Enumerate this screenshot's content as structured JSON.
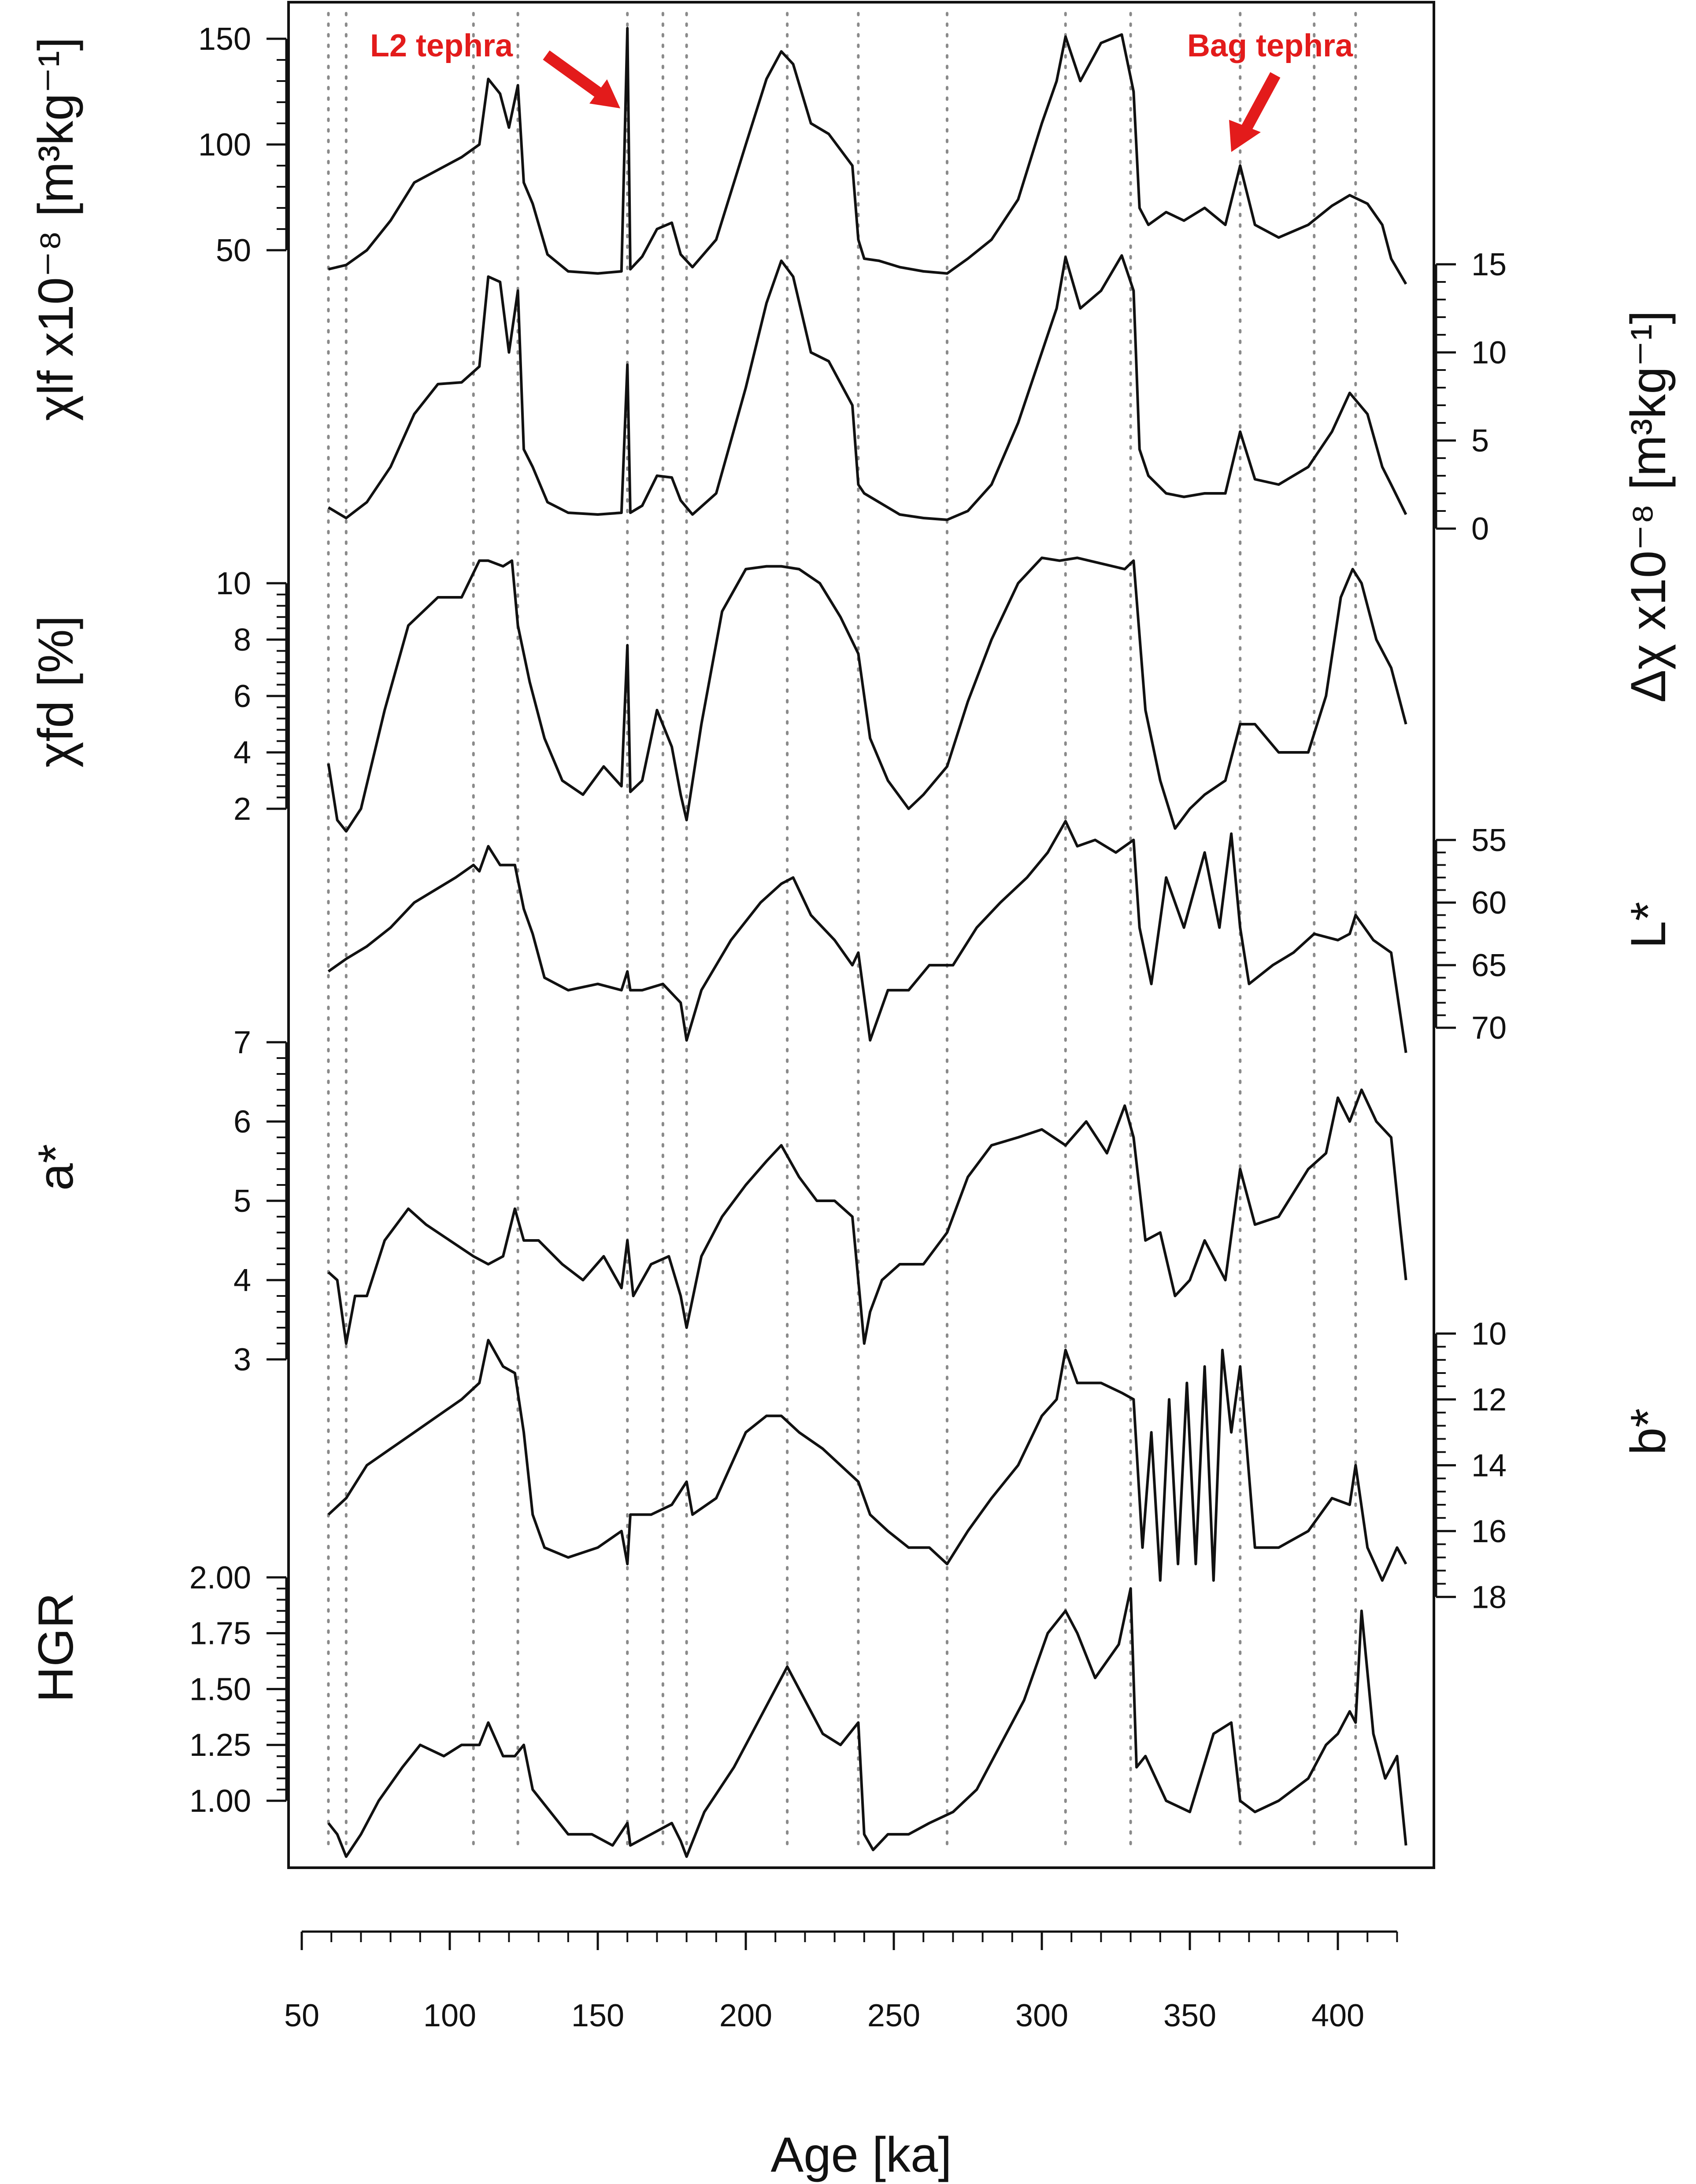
{
  "chart_data": {
    "type": "line",
    "xlabel": "Age [ka]",
    "xlim": [
      50,
      430
    ],
    "xticks": [
      50,
      100,
      150,
      200,
      250,
      300,
      350,
      400
    ],
    "xtick_labels": [
      "50",
      "100",
      "150",
      "200",
      "250",
      "300",
      "350",
      "400"
    ],
    "grid": "dotted vertical reference lines",
    "reference_lines_x": [
      59,
      65,
      108,
      123,
      160,
      172,
      180,
      214,
      238,
      268,
      308,
      330,
      367,
      392,
      406
    ],
    "annotations": [
      {
        "text": "L2 tephra",
        "x": 160
      },
      {
        "text": "Bag tephra",
        "x": 367
      }
    ],
    "panels": [
      {
        "name": "chi_lf",
        "ylabel": "χlf x10⁻⁸ [m³kg⁻¹]",
        "axis_side": "left",
        "ylim": [
          35,
          160
        ],
        "yticks": [
          50,
          100,
          150
        ],
        "ytick_labels": [
          "50",
          "100",
          "150"
        ],
        "x": [
          59,
          65,
          72,
          80,
          88,
          96,
          104,
          110,
          113,
          117,
          120,
          123,
          125,
          128,
          133,
          140,
          150,
          158,
          160,
          161,
          165,
          170,
          175,
          178,
          182,
          190,
          200,
          207,
          212,
          216,
          222,
          228,
          236,
          238,
          240,
          245,
          252,
          260,
          268,
          275,
          283,
          292,
          300,
          305,
          308,
          313,
          320,
          327,
          331,
          333,
          336,
          342,
          348,
          355,
          362,
          367,
          372,
          380,
          390,
          398,
          404,
          410,
          415,
          418,
          423
        ],
        "values": [
          41,
          43,
          50,
          64,
          82,
          88,
          94,
          100,
          131,
          124,
          108,
          128,
          82,
          72,
          48,
          40,
          39,
          40,
          155,
          41,
          47,
          60,
          63,
          48,
          42,
          55,
          100,
          131,
          144,
          138,
          110,
          105,
          90,
          55,
          46,
          45,
          42,
          40,
          39,
          46,
          55,
          74,
          110,
          130,
          151,
          130,
          148,
          152,
          125,
          70,
          62,
          68,
          64,
          70,
          62,
          90,
          62,
          56,
          62,
          71,
          76,
          72,
          62,
          46,
          34
        ]
      },
      {
        "name": "delta_chi",
        "ylabel": "Δχ x10⁻⁸ [m³kg⁻¹]",
        "axis_side": "right",
        "ylim": [
          0,
          16
        ],
        "yticks": [
          0,
          5,
          10,
          15
        ],
        "ytick_labels": [
          "0",
          "5",
          "10",
          "15"
        ],
        "x": [
          59,
          65,
          72,
          80,
          88,
          96,
          104,
          110,
          113,
          117,
          120,
          123,
          125,
          128,
          133,
          140,
          150,
          158,
          160,
          161,
          165,
          170,
          175,
          178,
          182,
          190,
          200,
          207,
          212,
          216,
          222,
          228,
          236,
          238,
          240,
          245,
          252,
          260,
          268,
          275,
          283,
          292,
          300,
          305,
          308,
          313,
          320,
          327,
          331,
          333,
          336,
          342,
          348,
          355,
          362,
          367,
          372,
          380,
          390,
          398,
          404,
          410,
          415,
          418,
          423
        ],
        "values": [
          1.2,
          0.6,
          1.5,
          3.5,
          6.5,
          8.2,
          8.3,
          9.2,
          14.3,
          14.0,
          10.0,
          13.5,
          4.5,
          3.5,
          1.5,
          0.9,
          0.8,
          0.9,
          9.3,
          0.9,
          1.3,
          3.0,
          2.9,
          1.6,
          0.8,
          2.0,
          8.0,
          12.8,
          15.2,
          14.3,
          10.0,
          9.5,
          7.0,
          2.5,
          2.0,
          1.5,
          0.8,
          0.6,
          0.5,
          1.0,
          2.5,
          6.0,
          10.0,
          12.5,
          15.4,
          12.5,
          13.5,
          15.5,
          13.5,
          4.5,
          3.0,
          2.0,
          1.8,
          2.0,
          2.0,
          5.5,
          2.8,
          2.5,
          3.5,
          5.5,
          7.7,
          6.5,
          3.5,
          2.5,
          0.8
        ]
      },
      {
        "name": "chi_fd",
        "ylabel": "χfd [%]",
        "axis_side": "left",
        "ylim": [
          1,
          11
        ],
        "yticks": [
          2,
          4,
          6,
          8,
          10
        ],
        "ytick_labels": [
          "2",
          "4",
          "6",
          "8",
          "10"
        ],
        "x": [
          59,
          62,
          65,
          70,
          78,
          86,
          96,
          104,
          110,
          113,
          118,
          121,
          123,
          127,
          132,
          138,
          145,
          152,
          158,
          160,
          161,
          165,
          170,
          175,
          178,
          180,
          185,
          192,
          200,
          207,
          212,
          218,
          225,
          232,
          238,
          242,
          248,
          255,
          260,
          268,
          275,
          283,
          292,
          300,
          306,
          312,
          320,
          328,
          331,
          335,
          340,
          345,
          350,
          355,
          362,
          367,
          372,
          380,
          390,
          396,
          401,
          405,
          408,
          413,
          418,
          423
        ],
        "values": [
          3.6,
          1.6,
          1.2,
          2.0,
          5.5,
          8.5,
          9.5,
          9.5,
          10.8,
          10.8,
          10.6,
          10.8,
          8.5,
          6.5,
          4.5,
          3.0,
          2.5,
          3.5,
          2.8,
          7.8,
          2.6,
          3.0,
          5.5,
          4.2,
          2.5,
          1.6,
          5.0,
          9.0,
          10.5,
          10.6,
          10.6,
          10.5,
          10.0,
          8.8,
          7.5,
          4.5,
          3.0,
          2.0,
          2.5,
          3.5,
          5.8,
          8.0,
          10.0,
          10.9,
          10.8,
          10.9,
          10.7,
          10.5,
          10.8,
          5.5,
          3.0,
          1.3,
          2.0,
          2.5,
          3.0,
          5.0,
          5.0,
          4.0,
          4.0,
          6.0,
          9.5,
          10.5,
          10.0,
          8.0,
          7.0,
          5.0
        ]
      },
      {
        "name": "L_star",
        "ylabel": "L*",
        "axis_side": "right",
        "y_inverted": true,
        "ylim": [
          72,
          53
        ],
        "yticks": [
          55,
          60,
          65,
          70
        ],
        "ytick_labels": [
          "55",
          "60",
          "65",
          "70"
        ],
        "x": [
          59,
          65,
          72,
          80,
          88,
          95,
          102,
          108,
          110,
          113,
          117,
          122,
          125,
          128,
          132,
          140,
          150,
          158,
          160,
          161,
          165,
          172,
          178,
          180,
          185,
          195,
          205,
          212,
          216,
          222,
          230,
          236,
          238,
          242,
          248,
          255,
          262,
          270,
          278,
          286,
          295,
          302,
          308,
          312,
          318,
          325,
          331,
          333,
          337,
          342,
          348,
          355,
          360,
          364,
          367,
          370,
          378,
          385,
          392,
          400,
          404,
          406,
          412,
          418,
          423
        ],
        "values": [
          65.5,
          64.5,
          63.5,
          62.0,
          60.0,
          59.0,
          58.0,
          57.0,
          57.5,
          55.5,
          57.0,
          57.0,
          60.5,
          62.5,
          66.0,
          67.0,
          66.5,
          67.0,
          65.5,
          67.0,
          67.0,
          66.5,
          68.0,
          71.0,
          67.0,
          63.0,
          60.0,
          58.5,
          58.0,
          61.0,
          63.0,
          65.0,
          64.0,
          71.0,
          67.0,
          67.0,
          65.0,
          65.0,
          62.0,
          60.0,
          58.0,
          56.0,
          53.5,
          55.5,
          55.0,
          56.0,
          55.0,
          62.0,
          66.5,
          58.0,
          62.0,
          56.0,
          62.0,
          54.5,
          62.0,
          66.5,
          65.0,
          64.0,
          62.5,
          63.0,
          62.5,
          61.0,
          63.0,
          64.0,
          72.0
        ]
      },
      {
        "name": "a_star",
        "ylabel": "a*",
        "axis_side": "left",
        "ylim": [
          2.7,
          7.2
        ],
        "yticks": [
          3,
          4,
          5,
          6,
          7
        ],
        "ytick_labels": [
          "3",
          "4",
          "5",
          "6",
          "7"
        ],
        "x": [
          59,
          62,
          65,
          68,
          72,
          78,
          86,
          92,
          100,
          108,
          113,
          118,
          122,
          125,
          130,
          138,
          145,
          152,
          158,
          160,
          162,
          168,
          174,
          178,
          180,
          185,
          192,
          200,
          207,
          212,
          218,
          224,
          230,
          236,
          238,
          240,
          242,
          246,
          252,
          260,
          268,
          275,
          283,
          292,
          300,
          308,
          315,
          322,
          328,
          331,
          335,
          340,
          345,
          350,
          355,
          362,
          367,
          372,
          380,
          390,
          396,
          400,
          404,
          408,
          413,
          418,
          421,
          423
        ],
        "values": [
          4.1,
          4.0,
          3.2,
          3.8,
          3.8,
          4.5,
          4.9,
          4.7,
          4.5,
          4.3,
          4.2,
          4.3,
          4.9,
          4.5,
          4.5,
          4.2,
          4.0,
          4.3,
          3.9,
          4.5,
          3.8,
          4.2,
          4.3,
          3.8,
          3.4,
          4.3,
          4.8,
          5.2,
          5.5,
          5.7,
          5.3,
          5.0,
          5.0,
          4.8,
          4.0,
          3.2,
          3.6,
          4.0,
          4.2,
          4.2,
          4.6,
          5.3,
          5.7,
          5.8,
          5.9,
          5.7,
          6.0,
          5.6,
          6.2,
          5.8,
          4.5,
          4.6,
          3.8,
          4.0,
          4.5,
          4.0,
          5.4,
          4.7,
          4.8,
          5.4,
          5.6,
          6.3,
          6.0,
          6.4,
          6.0,
          5.8,
          4.7,
          4.0
        ]
      },
      {
        "name": "b_star",
        "ylabel": "b*",
        "axis_side": "right",
        "y_inverted": true,
        "ylim": [
          19,
          9.5
        ],
        "yticks": [
          10,
          12,
          14,
          16,
          18
        ],
        "ytick_labels": [
          "10",
          "12",
          "14",
          "16",
          "18"
        ],
        "x": [
          59,
          65,
          72,
          80,
          88,
          96,
          104,
          110,
          113,
          118,
          122,
          125,
          128,
          132,
          140,
          150,
          158,
          160,
          161,
          168,
          175,
          180,
          182,
          190,
          200,
          207,
          212,
          218,
          226,
          232,
          238,
          242,
          248,
          255,
          262,
          268,
          275,
          283,
          292,
          300,
          305,
          308,
          312,
          320,
          327,
          331,
          334,
          337,
          340,
          343,
          346,
          349,
          352,
          355,
          358,
          361,
          364,
          367,
          372,
          380,
          390,
          398,
          404,
          406,
          410,
          415,
          420,
          423
        ],
        "values": [
          15.5,
          15.0,
          14.0,
          13.5,
          13.0,
          12.5,
          12.0,
          11.5,
          10.2,
          11.0,
          11.2,
          13.0,
          15.5,
          16.5,
          16.8,
          16.5,
          16.0,
          17.0,
          15.5,
          15.5,
          15.2,
          14.5,
          15.5,
          15.0,
          13.0,
          12.5,
          12.5,
          13.0,
          13.5,
          14.0,
          14.5,
          15.5,
          16.0,
          16.5,
          16.5,
          17.0,
          16.0,
          15.0,
          14.0,
          12.5,
          12.0,
          10.5,
          11.5,
          11.5,
          11.8,
          12.0,
          16.5,
          13.0,
          17.5,
          12.0,
          17.0,
          11.5,
          17.0,
          11.0,
          17.5,
          10.5,
          13.0,
          11.0,
          16.5,
          16.5,
          16.0,
          15.0,
          15.2,
          14.0,
          16.5,
          17.5,
          16.5,
          17.0
        ]
      },
      {
        "name": "HGR",
        "ylabel": "HGR",
        "axis_side": "left",
        "ylim": [
          0.72,
          2.12
        ],
        "yticks": [
          1.0,
          1.25,
          1.5,
          1.75,
          2.0
        ],
        "ytick_labels": [
          "1.00",
          "1.25",
          "1.50",
          "1.75",
          "2.00"
        ],
        "x": [
          59,
          62,
          65,
          70,
          76,
          84,
          90,
          98,
          104,
          110,
          113,
          118,
          122,
          125,
          128,
          134,
          140,
          148,
          155,
          160,
          161,
          168,
          175,
          178,
          180,
          186,
          196,
          204,
          210,
          214,
          220,
          226,
          232,
          238,
          240,
          243,
          248,
          255,
          262,
          270,
          278,
          286,
          294,
          302,
          308,
          312,
          318,
          326,
          330,
          332,
          335,
          342,
          350,
          358,
          364,
          367,
          372,
          380,
          390,
          396,
          400,
          404,
          406,
          408,
          412,
          416,
          420,
          423
        ],
        "values": [
          0.9,
          0.85,
          0.75,
          0.85,
          1.0,
          1.15,
          1.25,
          1.2,
          1.25,
          1.25,
          1.35,
          1.2,
          1.2,
          1.25,
          1.05,
          0.95,
          0.85,
          0.85,
          0.8,
          0.9,
          0.8,
          0.85,
          0.9,
          0.82,
          0.75,
          0.95,
          1.15,
          1.35,
          1.5,
          1.6,
          1.45,
          1.3,
          1.25,
          1.35,
          0.85,
          0.78,
          0.85,
          0.85,
          0.9,
          0.95,
          1.05,
          1.25,
          1.45,
          1.75,
          1.85,
          1.75,
          1.55,
          1.7,
          1.95,
          1.15,
          1.2,
          1.0,
          0.95,
          1.3,
          1.35,
          1.0,
          0.95,
          1.0,
          1.1,
          1.25,
          1.3,
          1.4,
          1.35,
          1.85,
          1.3,
          1.1,
          1.2,
          0.8
        ]
      }
    ]
  }
}
